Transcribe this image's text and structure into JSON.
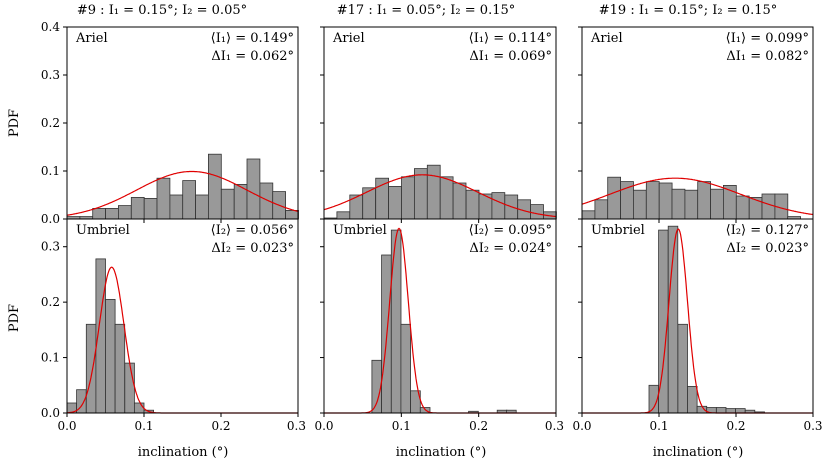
{
  "colors": {
    "bar_fill": "#999999",
    "bar_edge": "#333333",
    "fit_line": "#e00000"
  },
  "shared": {
    "ylabel": "PDF",
    "xlabel": "inclination (°)",
    "xlim": [
      0,
      0.3
    ],
    "xticks": [
      "0.0",
      "0.1",
      "0.2",
      "0.3"
    ],
    "top_ylim": [
      0,
      0.4
    ],
    "top_yticks": [
      "0.0",
      "0.1",
      "0.2",
      "0.3",
      "0.4"
    ],
    "bottom_ylim": [
      0,
      0.35
    ],
    "bottom_yticks": [
      "0.0",
      "0.1",
      "0.2",
      "0.3"
    ]
  },
  "columns": [
    {
      "title": "#9 : I₁ = 0.15°; I₂ = 0.05°"
    },
    {
      "title": "#17 : I₁ = 0.05°; I₂ = 0.15°"
    },
    {
      "title": "#19 : I₁ = 0.15°; I₂ = 0.15°"
    }
  ],
  "chart_data": [
    {
      "type": "bar",
      "moon": "Ariel",
      "stat1": "⟨I₁⟩ = 0.149°",
      "stat2": "ΔI₁ = 0.062°",
      "bin_start": 0.0,
      "bin_width": 0.0167,
      "values": [
        0.005,
        0.005,
        0.022,
        0.022,
        0.028,
        0.045,
        0.043,
        0.085,
        0.05,
        0.08,
        0.05,
        0.135,
        0.062,
        0.072,
        0.125,
        0.075,
        0.057,
        0.018
      ],
      "fit": {
        "mean": 0.162,
        "sigma": 0.072,
        "amp": 0.099
      }
    },
    {
      "type": "bar",
      "moon": "Ariel",
      "stat1": "⟨I₁⟩ = 0.114°",
      "stat2": "ΔI₁ = 0.069°",
      "bin_start": 0.0,
      "bin_width": 0.0167,
      "values": [
        0.002,
        0.015,
        0.05,
        0.065,
        0.085,
        0.068,
        0.088,
        0.105,
        0.112,
        0.088,
        0.075,
        0.06,
        0.052,
        0.055,
        0.05,
        0.04,
        0.03,
        0.015
      ],
      "fit": {
        "mean": 0.127,
        "sigma": 0.072,
        "amp": 0.092
      }
    },
    {
      "type": "bar",
      "moon": "Ariel",
      "stat1": "⟨I₁⟩ = 0.099°",
      "stat2": "ΔI₁ = 0.082°",
      "bin_start": 0.0,
      "bin_width": 0.0167,
      "values": [
        0.017,
        0.04,
        0.087,
        0.078,
        0.06,
        0.078,
        0.075,
        0.062,
        0.06,
        0.078,
        0.062,
        0.07,
        0.048,
        0.045,
        0.052,
        0.052,
        0.005
      ],
      "fit": {
        "mean": 0.121,
        "sigma": 0.085,
        "amp": 0.085
      }
    },
    {
      "type": "bar",
      "moon": "Umbriel",
      "stat1": "⟨I₂⟩ = 0.056°",
      "stat2": "ΔI₂ = 0.023°",
      "bin_start": 0.0,
      "bin_width": 0.0125,
      "values": [
        0.018,
        0.042,
        0.16,
        0.278,
        0.205,
        0.16,
        0.09,
        0.018,
        0.005
      ],
      "fit": {
        "mean": 0.058,
        "sigma": 0.016,
        "amp": 0.263
      }
    },
    {
      "type": "bar",
      "moon": "Umbriel",
      "stat1": "⟨I₂⟩ = 0.095°",
      "stat2": "ΔI₂ = 0.024°",
      "bin_start": 0.062,
      "bin_width": 0.0125,
      "values": [
        0.095,
        0.285,
        0.33,
        0.16,
        0.04,
        0.01
      ],
      "extra_bars": [
        {
          "x": 0.187,
          "w": 0.0125,
          "v": 0.003
        },
        {
          "x": 0.224,
          "w": 0.0125,
          "v": 0.005
        },
        {
          "x": 0.236,
          "w": 0.0125,
          "v": 0.005
        }
      ],
      "fit": {
        "mean": 0.097,
        "sigma": 0.012,
        "amp": 0.333
      }
    },
    {
      "type": "bar",
      "moon": "Umbriel",
      "stat1": "⟨I₂⟩ = 0.127°",
      "stat2": "ΔI₂ = 0.023°",
      "bin_start": 0.087,
      "bin_width": 0.0125,
      "values": [
        0.05,
        0.33,
        0.337,
        0.16,
        0.048,
        0.012,
        0.01,
        0.01,
        0.008,
        0.008,
        0.005,
        0.002
      ],
      "fit": {
        "mean": 0.125,
        "sigma": 0.012,
        "amp": 0.332
      }
    }
  ]
}
